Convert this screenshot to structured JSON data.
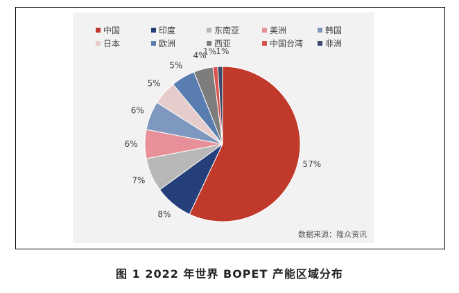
{
  "chart_data": {
    "type": "pie",
    "title": "",
    "categories": [
      "中国",
      "印度",
      "东南亚",
      "美洲",
      "韩国",
      "日本",
      "欧洲",
      "西亚",
      "中国台湾",
      "非洲"
    ],
    "values": [
      57,
      8,
      7,
      6,
      6,
      5,
      5,
      4,
      1,
      1
    ],
    "data_labels": [
      "57%",
      "8%",
      "7%",
      "6%",
      "6%",
      "5%",
      "5%",
      "4%",
      "1%",
      "1%"
    ],
    "colors": [
      "#c0392b",
      "#243f7a",
      "#b8b8b8",
      "#e8909a",
      "#7f98bf",
      "#e6cccb",
      "#5a7db0",
      "#7d7d7d",
      "#d9534f",
      "#3a4a6a"
    ],
    "legend_placement": "top",
    "direction": "clockwise from 12 o'clock"
  },
  "source_note": "数据来源：隆众资讯",
  "caption": "图 1  2022 年世界 BOPET 产能区域分布"
}
